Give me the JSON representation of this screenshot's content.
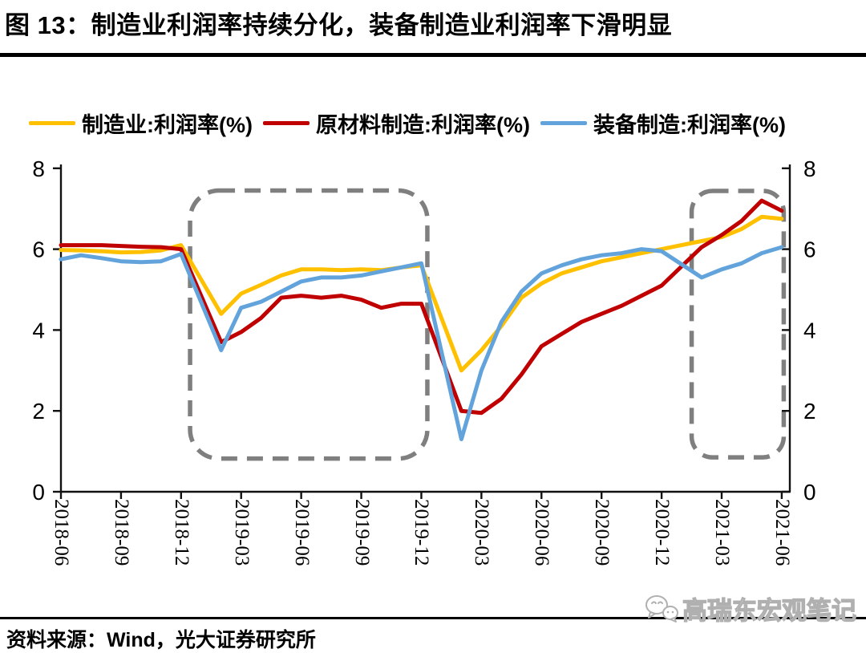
{
  "page": {
    "title": "图 13：制造业利润率持续分化，装备制造业利润率下滑明显",
    "source": "资料来源：Wind，光大证券研究所",
    "watermark": "高瑞东宏观笔记"
  },
  "colors": {
    "axis": "#111111",
    "rule": "#000000",
    "annotation": "#7f7f7f",
    "watermark_outline": "#b0b0b0"
  },
  "chart_data": {
    "type": "line",
    "title": "图 13：制造业利润率持续分化，装备制造业利润率下滑明显",
    "xlabel": "",
    "ylabel": "利润率(%)",
    "ylim": [
      0,
      8
    ],
    "y_ticks": [
      0,
      2,
      4,
      6,
      8
    ],
    "dual_axis": true,
    "grid": false,
    "legend_position": "top",
    "x_tick_labels": [
      "2018-06",
      "2018-09",
      "2018-12",
      "2019-03",
      "2019-06",
      "2019-09",
      "2019-12",
      "2020-03",
      "2020-06",
      "2020-09",
      "2020-12",
      "2021-03",
      "2021-06"
    ],
    "series": [
      {
        "name": "制造业:利润率(%)",
        "color": "#FFC000",
        "points": [
          [
            "2018-06",
            5.98
          ],
          [
            "2018-07",
            5.97
          ],
          [
            "2018-08",
            5.95
          ],
          [
            "2018-09",
            5.92
          ],
          [
            "2018-10",
            5.93
          ],
          [
            "2018-11",
            5.97
          ],
          [
            "2018-12",
            6.1
          ],
          [
            "2019-02",
            4.4
          ],
          [
            "2019-03",
            4.9
          ],
          [
            "2019-04",
            5.12
          ],
          [
            "2019-05",
            5.35
          ],
          [
            "2019-06",
            5.5
          ],
          [
            "2019-07",
            5.5
          ],
          [
            "2019-08",
            5.48
          ],
          [
            "2019-09",
            5.5
          ],
          [
            "2019-10",
            5.48
          ],
          [
            "2019-11",
            5.55
          ],
          [
            "2019-12",
            5.6
          ],
          [
            "2020-02",
            3.0
          ],
          [
            "2020-03",
            3.5
          ],
          [
            "2020-04",
            4.1
          ],
          [
            "2020-05",
            4.8
          ],
          [
            "2020-06",
            5.15
          ],
          [
            "2020-07",
            5.4
          ],
          [
            "2020-08",
            5.55
          ],
          [
            "2020-09",
            5.7
          ],
          [
            "2020-10",
            5.8
          ],
          [
            "2020-11",
            5.9
          ],
          [
            "2020-12",
            6.0
          ],
          [
            "2021-02",
            6.2
          ],
          [
            "2021-03",
            6.3
          ],
          [
            "2021-04",
            6.5
          ],
          [
            "2021-05",
            6.8
          ],
          [
            "2021-06",
            6.75
          ]
        ]
      },
      {
        "name": "原材料制造:利润率(%)",
        "color": "#C00000",
        "points": [
          [
            "2018-06",
            6.1
          ],
          [
            "2018-07",
            6.1
          ],
          [
            "2018-08",
            6.1
          ],
          [
            "2018-09",
            6.08
          ],
          [
            "2018-10",
            6.06
          ],
          [
            "2018-11",
            6.05
          ],
          [
            "2018-12",
            6.0
          ],
          [
            "2019-02",
            3.7
          ],
          [
            "2019-03",
            3.95
          ],
          [
            "2019-04",
            4.3
          ],
          [
            "2019-05",
            4.8
          ],
          [
            "2019-06",
            4.85
          ],
          [
            "2019-07",
            4.8
          ],
          [
            "2019-08",
            4.85
          ],
          [
            "2019-09",
            4.75
          ],
          [
            "2019-10",
            4.55
          ],
          [
            "2019-11",
            4.65
          ],
          [
            "2019-12",
            4.65
          ],
          [
            "2020-02",
            2.0
          ],
          [
            "2020-03",
            1.95
          ],
          [
            "2020-04",
            2.3
          ],
          [
            "2020-05",
            2.9
          ],
          [
            "2020-06",
            3.6
          ],
          [
            "2020-07",
            3.9
          ],
          [
            "2020-08",
            4.2
          ],
          [
            "2020-09",
            4.4
          ],
          [
            "2020-10",
            4.6
          ],
          [
            "2020-11",
            4.85
          ],
          [
            "2020-12",
            5.1
          ],
          [
            "2021-02",
            6.05
          ],
          [
            "2021-03",
            6.35
          ],
          [
            "2021-04",
            6.7
          ],
          [
            "2021-05",
            7.2
          ],
          [
            "2021-06",
            6.95
          ]
        ]
      },
      {
        "name": "装备制造:利润率(%)",
        "color": "#62A3DC",
        "points": [
          [
            "2018-06",
            5.75
          ],
          [
            "2018-07",
            5.85
          ],
          [
            "2018-08",
            5.78
          ],
          [
            "2018-09",
            5.7
          ],
          [
            "2018-10",
            5.68
          ],
          [
            "2018-11",
            5.7
          ],
          [
            "2018-12",
            5.88
          ],
          [
            "2019-02",
            3.5
          ],
          [
            "2019-03",
            4.55
          ],
          [
            "2019-04",
            4.7
          ],
          [
            "2019-05",
            4.95
          ],
          [
            "2019-06",
            5.2
          ],
          [
            "2019-07",
            5.3
          ],
          [
            "2019-08",
            5.3
          ],
          [
            "2019-09",
            5.35
          ],
          [
            "2019-10",
            5.45
          ],
          [
            "2019-11",
            5.55
          ],
          [
            "2019-12",
            5.65
          ],
          [
            "2020-02",
            1.3
          ],
          [
            "2020-03",
            3.0
          ],
          [
            "2020-04",
            4.2
          ],
          [
            "2020-05",
            4.95
          ],
          [
            "2020-06",
            5.4
          ],
          [
            "2020-07",
            5.6
          ],
          [
            "2020-08",
            5.75
          ],
          [
            "2020-09",
            5.85
          ],
          [
            "2020-10",
            5.9
          ],
          [
            "2020-11",
            6.0
          ],
          [
            "2020-12",
            5.95
          ],
          [
            "2021-02",
            5.3
          ],
          [
            "2021-03",
            5.5
          ],
          [
            "2021-04",
            5.65
          ],
          [
            "2021-05",
            5.9
          ],
          [
            "2021-06",
            6.05
          ]
        ]
      }
    ],
    "annotations": [
      {
        "type": "dashed_box",
        "x_from_month": 6.45,
        "x_to_month": 18.3,
        "y_from": 0.82,
        "y_to": 7.45
      },
      {
        "type": "dashed_box",
        "x_from_month": 31.5,
        "x_to_month": 36.1,
        "y_from": 0.85,
        "y_to": 7.44
      }
    ]
  }
}
